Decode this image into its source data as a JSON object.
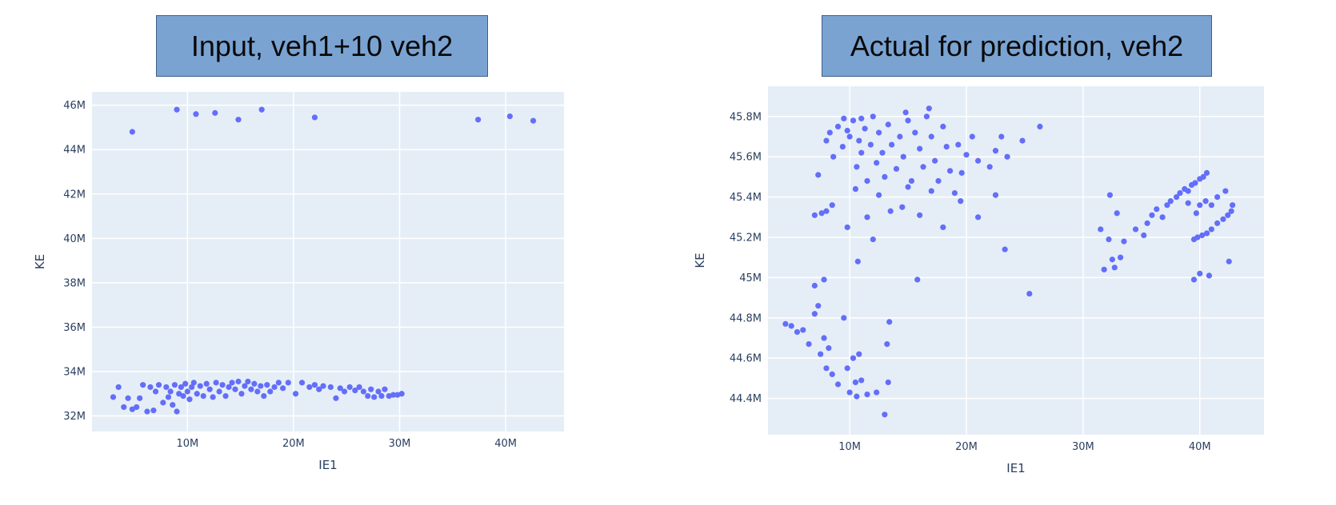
{
  "chart_data": [
    {
      "type": "scatter",
      "title": "Input, veh1+10 veh2",
      "xlabel": "IE1",
      "ylabel": "KE",
      "xlim": [
        1000000,
        45500000
      ],
      "ylim": [
        31300000,
        46600000
      ],
      "x_ticks": [
        10000000,
        20000000,
        30000000,
        40000000
      ],
      "x_tick_labels": [
        "10M",
        "20M",
        "30M",
        "40M"
      ],
      "y_ticks": [
        32000000,
        34000000,
        36000000,
        38000000,
        40000000,
        42000000,
        44000000,
        46000000
      ],
      "y_tick_labels": [
        "32M",
        "34M",
        "36M",
        "38M",
        "40M",
        "42M",
        "44M",
        "46M"
      ],
      "grid": true,
      "marker_color": "#636efa",
      "background": "#e5eef6",
      "points": [
        [
          4800000.0,
          44800000.0
        ],
        [
          9000000.0,
          45800000.0
        ],
        [
          10800000.0,
          45600000.0
        ],
        [
          12600000.0,
          45650000.0
        ],
        [
          14800000.0,
          45350000.0
        ],
        [
          17000000.0,
          45800000.0
        ],
        [
          22000000.0,
          45450000.0
        ],
        [
          37400000.0,
          45350000.0
        ],
        [
          40400000.0,
          45500000.0
        ],
        [
          42600000.0,
          45300000.0
        ],
        [
          3000000.0,
          32850000.0
        ],
        [
          3500000.0,
          33300000.0
        ],
        [
          4000000.0,
          32400000.0
        ],
        [
          4400000.0,
          32800000.0
        ],
        [
          4800000.0,
          32300000.0
        ],
        [
          5200000.0,
          32400000.0
        ],
        [
          5500000.0,
          32800000.0
        ],
        [
          5800000.0,
          33400000.0
        ],
        [
          6200000.0,
          32200000.0
        ],
        [
          6500000.0,
          33300000.0
        ],
        [
          6800000.0,
          32250000.0
        ],
        [
          7000000.0,
          33100000.0
        ],
        [
          7300000.0,
          33400000.0
        ],
        [
          7700000.0,
          32600000.0
        ],
        [
          8000000.0,
          33300000.0
        ],
        [
          8200000.0,
          32850000.0
        ],
        [
          8400000.0,
          33100000.0
        ],
        [
          8600000.0,
          32500000.0
        ],
        [
          8800000.0,
          33400000.0
        ],
        [
          9000000.0,
          32200000.0
        ],
        [
          9200000.0,
          33000000.0
        ],
        [
          9400000.0,
          33300000.0
        ],
        [
          9600000.0,
          32900000.0
        ],
        [
          9800000.0,
          33450000.0
        ],
        [
          10000000.0,
          33100000.0
        ],
        [
          10200000.0,
          32750000.0
        ],
        [
          10400000.0,
          33300000.0
        ],
        [
          10600000.0,
          33500000.0
        ],
        [
          10900000.0,
          33000000.0
        ],
        [
          11200000.0,
          33350000.0
        ],
        [
          11500000.0,
          32900000.0
        ],
        [
          11800000.0,
          33450000.0
        ],
        [
          12100000.0,
          33200000.0
        ],
        [
          12400000.0,
          32850000.0
        ],
        [
          12700000.0,
          33500000.0
        ],
        [
          13000000.0,
          33100000.0
        ],
        [
          13300000.0,
          33400000.0
        ],
        [
          13600000.0,
          32900000.0
        ],
        [
          13900000.0,
          33300000.0
        ],
        [
          14200000.0,
          33500000.0
        ],
        [
          14500000.0,
          33200000.0
        ],
        [
          14800000.0,
          33550000.0
        ],
        [
          15100000.0,
          33000000.0
        ],
        [
          15400000.0,
          33350000.0
        ],
        [
          15700000.0,
          33550000.0
        ],
        [
          16000000.0,
          33200000.0
        ],
        [
          16300000.0,
          33450000.0
        ],
        [
          16600000.0,
          33100000.0
        ],
        [
          16900000.0,
          33350000.0
        ],
        [
          17200000.0,
          32900000.0
        ],
        [
          17500000.0,
          33400000.0
        ],
        [
          17800000.0,
          33100000.0
        ],
        [
          18200000.0,
          33300000.0
        ],
        [
          18600000.0,
          33500000.0
        ],
        [
          19000000.0,
          33250000.0
        ],
        [
          19500000.0,
          33500000.0
        ],
        [
          20200000.0,
          33000000.0
        ],
        [
          20800000.0,
          33500000.0
        ],
        [
          21500000.0,
          33300000.0
        ],
        [
          22000000.0,
          33400000.0
        ],
        [
          22400000.0,
          33200000.0
        ],
        [
          22800000.0,
          33350000.0
        ],
        [
          23500000.0,
          33300000.0
        ],
        [
          24000000.0,
          32800000.0
        ],
        [
          24400000.0,
          33250000.0
        ],
        [
          24800000.0,
          33100000.0
        ],
        [
          25300000.0,
          33300000.0
        ],
        [
          25800000.0,
          33150000.0
        ],
        [
          26200000.0,
          33300000.0
        ],
        [
          26600000.0,
          33100000.0
        ],
        [
          27000000.0,
          32900000.0
        ],
        [
          27300000.0,
          33200000.0
        ],
        [
          27600000.0,
          32850000.0
        ],
        [
          28000000.0,
          33100000.0
        ],
        [
          28300000.0,
          32900000.0
        ],
        [
          28600000.0,
          33200000.0
        ],
        [
          29000000.0,
          32900000.0
        ],
        [
          29400000.0,
          32950000.0
        ],
        [
          29800000.0,
          32950000.0
        ],
        [
          30200000.0,
          33000000.0
        ]
      ]
    },
    {
      "type": "scatter",
      "title": "Actual for prediction, veh2",
      "xlabel": "IE1",
      "ylabel": "KE",
      "xlim": [
        3000000,
        45500000
      ],
      "ylim": [
        44220000,
        45950000
      ],
      "x_ticks": [
        10000000,
        20000000,
        30000000,
        40000000
      ],
      "x_tick_labels": [
        "10M",
        "20M",
        "30M",
        "40M"
      ],
      "y_ticks": [
        44400000,
        44600000,
        44800000,
        45000000,
        45200000,
        45400000,
        45600000,
        45800000
      ],
      "y_tick_labels": [
        "44.4M",
        "44.6M",
        "44.8M",
        "45M",
        "45.2M",
        "45.4M",
        "45.6M",
        "45.8M"
      ],
      "grid": true,
      "marker_color": "#636efa",
      "background": "#e5eef6",
      "points": [
        [
          4500000.0,
          44770000.0
        ],
        [
          5000000.0,
          44760000.0
        ],
        [
          5500000.0,
          44730000.0
        ],
        [
          6000000.0,
          44740000.0
        ],
        [
          6500000.0,
          44670000.0
        ],
        [
          7000000.0,
          44820000.0
        ],
        [
          7300000.0,
          44860000.0
        ],
        [
          7500000.0,
          44620000.0
        ],
        [
          7800000.0,
          44700000.0
        ],
        [
          8000000.0,
          44550000.0
        ],
        [
          8200000.0,
          44650000.0
        ],
        [
          8500000.0,
          44520000.0
        ],
        [
          9000000.0,
          44470000.0
        ],
        [
          9500000.0,
          44800000.0
        ],
        [
          9800000.0,
          44550000.0
        ],
        [
          10000000.0,
          44430000.0
        ],
        [
          10300000.0,
          44600000.0
        ],
        [
          10500000.0,
          44480000.0
        ],
        [
          10800000.0,
          44620000.0
        ],
        [
          10600000.0,
          44410000.0
        ],
        [
          11000000.0,
          44490000.0
        ],
        [
          11500000.0,
          44420000.0
        ],
        [
          12300000.0,
          44430000.0
        ],
        [
          13000000.0,
          44320000.0
        ],
        [
          13200000.0,
          44670000.0
        ],
        [
          13400000.0,
          44780000.0
        ],
        [
          13300000.0,
          44480000.0
        ],
        [
          7000000.0,
          44960000.0
        ],
        [
          7800000.0,
          44990000.0
        ],
        [
          10700000.0,
          45080000.0
        ],
        [
          15800000.0,
          44990000.0
        ],
        [
          23300000.0,
          45140000.0
        ],
        [
          25400000.0,
          44920000.0
        ],
        [
          7000000.0,
          45310000.0
        ],
        [
          7600000.0,
          45320000.0
        ],
        [
          8000000.0,
          45330000.0
        ],
        [
          8500000.0,
          45360000.0
        ],
        [
          7300000.0,
          45510000.0
        ],
        [
          9800000.0,
          45250000.0
        ],
        [
          10500000.0,
          45440000.0
        ],
        [
          11500000.0,
          45300000.0
        ],
        [
          12000000.0,
          45190000.0
        ],
        [
          13500000.0,
          45330000.0
        ],
        [
          14500000.0,
          45350000.0
        ],
        [
          16000000.0,
          45310000.0
        ],
        [
          18000000.0,
          45250000.0
        ],
        [
          21000000.0,
          45300000.0
        ],
        [
          22500000.0,
          45410000.0
        ],
        [
          8000000.0,
          45680000.0
        ],
        [
          8300000.0,
          45720000.0
        ],
        [
          8600000.0,
          45600000.0
        ],
        [
          9000000.0,
          45750000.0
        ],
        [
          9400000.0,
          45650000.0
        ],
        [
          9800000.0,
          45730000.0
        ],
        [
          10000000.0,
          45700000.0
        ],
        [
          10300000.0,
          45780000.0
        ],
        [
          10600000.0,
          45550000.0
        ],
        [
          10800000.0,
          45680000.0
        ],
        [
          11000000.0,
          45620000.0
        ],
        [
          11300000.0,
          45740000.0
        ],
        [
          11500000.0,
          45480000.0
        ],
        [
          11800000.0,
          45660000.0
        ],
        [
          12000000.0,
          45800000.0
        ],
        [
          12300000.0,
          45570000.0
        ],
        [
          12500000.0,
          45720000.0
        ],
        [
          12800000.0,
          45620000.0
        ],
        [
          13000000.0,
          45500000.0
        ],
        [
          13300000.0,
          45760000.0
        ],
        [
          13600000.0,
          45660000.0
        ],
        [
          14000000.0,
          45540000.0
        ],
        [
          14300000.0,
          45700000.0
        ],
        [
          14600000.0,
          45600000.0
        ],
        [
          15000000.0,
          45780000.0
        ],
        [
          15300000.0,
          45480000.0
        ],
        [
          15600000.0,
          45720000.0
        ],
        [
          16000000.0,
          45640000.0
        ],
        [
          16300000.0,
          45550000.0
        ],
        [
          16600000.0,
          45800000.0
        ],
        [
          17000000.0,
          45700000.0
        ],
        [
          17300000.0,
          45580000.0
        ],
        [
          17600000.0,
          45480000.0
        ],
        [
          18000000.0,
          45750000.0
        ],
        [
          18300000.0,
          45650000.0
        ],
        [
          18600000.0,
          45530000.0
        ],
        [
          19000000.0,
          45420000.0
        ],
        [
          19300000.0,
          45660000.0
        ],
        [
          19600000.0,
          45520000.0
        ],
        [
          20000000.0,
          45610000.0
        ],
        [
          20500000.0,
          45700000.0
        ],
        [
          21000000.0,
          45580000.0
        ],
        [
          22000000.0,
          45550000.0
        ],
        [
          22500000.0,
          45630000.0
        ],
        [
          23000000.0,
          45700000.0
        ],
        [
          23500000.0,
          45600000.0
        ],
        [
          24800000.0,
          45680000.0
        ],
        [
          26300000.0,
          45750000.0
        ],
        [
          9500000.0,
          45790000.0
        ],
        [
          11000000.0,
          45790000.0
        ],
        [
          14800000.0,
          45820000.0
        ],
        [
          16800000.0,
          45840000.0
        ],
        [
          12500000.0,
          45410000.0
        ],
        [
          15000000.0,
          45450000.0
        ],
        [
          17000000.0,
          45430000.0
        ],
        [
          19500000.0,
          45380000.0
        ],
        [
          31500000.0,
          45240000.0
        ],
        [
          31800000.0,
          45040000.0
        ],
        [
          32200000.0,
          45190000.0
        ],
        [
          32300000.0,
          45410000.0
        ],
        [
          32500000.0,
          45090000.0
        ],
        [
          32700000.0,
          45050000.0
        ],
        [
          32900000.0,
          45320000.0
        ],
        [
          33200000.0,
          45100000.0
        ],
        [
          33500000.0,
          45180000.0
        ],
        [
          34500000.0,
          45240000.0
        ],
        [
          35200000.0,
          45210000.0
        ],
        [
          35500000.0,
          45270000.0
        ],
        [
          35900000.0,
          45310000.0
        ],
        [
          36300000.0,
          45340000.0
        ],
        [
          36800000.0,
          45300000.0
        ],
        [
          37200000.0,
          45360000.0
        ],
        [
          37500000.0,
          45380000.0
        ],
        [
          38000000.0,
          45400000.0
        ],
        [
          38300000.0,
          45420000.0
        ],
        [
          38700000.0,
          45440000.0
        ],
        [
          39000000.0,
          45430000.0
        ],
        [
          39300000.0,
          45460000.0
        ],
        [
          39600000.0,
          45470000.0
        ],
        [
          40000000.0,
          45490000.0
        ],
        [
          40300000.0,
          45500000.0
        ],
        [
          40600000.0,
          45520000.0
        ],
        [
          39500000.0,
          45190000.0
        ],
        [
          39800000.0,
          45200000.0
        ],
        [
          40200000.0,
          45210000.0
        ],
        [
          40600000.0,
          45220000.0
        ],
        [
          41000000.0,
          45240000.0
        ],
        [
          41500000.0,
          45270000.0
        ],
        [
          42000000.0,
          45290000.0
        ],
        [
          42400000.0,
          45310000.0
        ],
        [
          42700000.0,
          45330000.0
        ],
        [
          40000000.0,
          45360000.0
        ],
        [
          40500000.0,
          45380000.0
        ],
        [
          41500000.0,
          45400000.0
        ],
        [
          42200000.0,
          45430000.0
        ],
        [
          39500000.0,
          44990000.0
        ],
        [
          40000000.0,
          45020000.0
        ],
        [
          40800000.0,
          45010000.0
        ],
        [
          42500000.0,
          45080000.0
        ],
        [
          39700000.0,
          45320000.0
        ],
        [
          41000000.0,
          45360000.0
        ],
        [
          42800000.0,
          45360000.0
        ],
        [
          39000000.0,
          45370000.0
        ]
      ]
    }
  ]
}
